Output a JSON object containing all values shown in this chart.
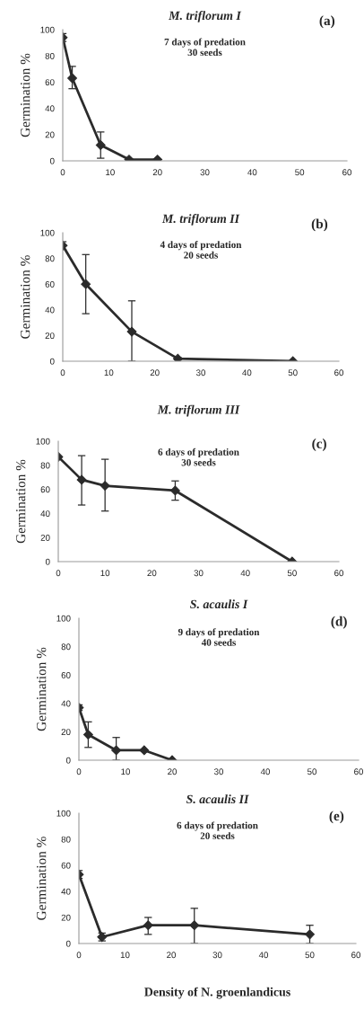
{
  "chart_data": [
    {
      "type": "line",
      "title": "M. triflorum I",
      "ylabel": "Germination %",
      "annotations": [
        "(a)",
        "7 days of predation\n30 seeds"
      ],
      "x": [
        0,
        2,
        8,
        14,
        20
      ],
      "values": [
        94,
        63,
        12,
        1,
        1
      ],
      "errors": [
        3,
        [
          55,
          72
        ],
        [
          2,
          22
        ],
        null,
        null
      ],
      "color": "#2b2b2b",
      "marker": "diamond",
      "xlim": [
        0,
        60
      ],
      "xticks": [
        0,
        10,
        20,
        30,
        40,
        50,
        60
      ],
      "ylim": [
        0,
        100
      ],
      "yticks": [
        0,
        20,
        40,
        60,
        80,
        100
      ],
      "grid": false
    },
    {
      "type": "line",
      "title": "M. triflorum II",
      "ylabel": "Germination %",
      "annotations": [
        "(b)",
        "4 days of predation\n20 seeds"
      ],
      "x": [
        0,
        5,
        15,
        25,
        50
      ],
      "values": [
        90,
        60,
        23,
        2,
        0
      ],
      "errors": [
        3,
        [
          37,
          83
        ],
        [
          0,
          47
        ],
        1,
        null
      ],
      "color": "#2b2b2b",
      "marker": "diamond",
      "xlim": [
        0,
        60
      ],
      "xticks": [
        0,
        10,
        20,
        30,
        40,
        50,
        60
      ],
      "ylim": [
        0,
        100
      ],
      "yticks": [
        0,
        20,
        40,
        60,
        80,
        100
      ],
      "grid": false
    },
    {
      "type": "line",
      "title": "M. triflorum III",
      "ylabel": "Germination %",
      "annotations": [
        "(c)",
        "6 days of predation\n30 seeds"
      ],
      "x": [
        0,
        5,
        10,
        25,
        50
      ],
      "values": [
        87,
        68,
        63,
        59,
        0
      ],
      "errors": [
        null,
        [
          47,
          88
        ],
        [
          42,
          85
        ],
        [
          51,
          67
        ],
        null
      ],
      "color": "#2b2b2b",
      "marker": "diamond",
      "xlim": [
        0,
        60
      ],
      "xticks": [
        0,
        10,
        20,
        30,
        40,
        50,
        60
      ],
      "ylim": [
        0,
        100
      ],
      "yticks": [
        0,
        20,
        40,
        60,
        80,
        100
      ],
      "grid": false
    },
    {
      "type": "line",
      "title": "S. acaulis I",
      "ylabel": "Germination %",
      "annotations": [
        "(d)",
        "9 days of predation\n40 seeds"
      ],
      "x": [
        0,
        2,
        8,
        14,
        20
      ],
      "values": [
        37,
        18,
        7,
        7,
        0
      ],
      "errors": [
        2,
        [
          9,
          27
        ],
        [
          0,
          16
        ],
        null,
        null
      ],
      "color": "#2b2b2b",
      "marker": "diamond",
      "xlim": [
        0,
        60
      ],
      "xticks": [
        0,
        10,
        20,
        30,
        40,
        50,
        60
      ],
      "ylim": [
        0,
        100
      ],
      "yticks": [
        0,
        20,
        40,
        60,
        80,
        100
      ],
      "grid": false
    },
    {
      "type": "line",
      "title": "S. acaulis II",
      "ylabel": "Germination %",
      "xlabel": "Density of N. groenlandicus",
      "annotations": [
        "(e)",
        "6 days of predation\n20 seeds"
      ],
      "x": [
        0,
        5,
        15,
        25,
        50
      ],
      "values": [
        53,
        5,
        14,
        14,
        7
      ],
      "errors": [
        3,
        3,
        [
          7,
          20
        ],
        [
          0,
          27
        ],
        [
          0,
          14
        ]
      ],
      "color": "#2b2b2b",
      "marker": "diamond",
      "xlim": [
        0,
        60
      ],
      "xticks": [
        0,
        10,
        20,
        30,
        40,
        50,
        60
      ],
      "ylim": [
        0,
        100
      ],
      "yticks": [
        0,
        20,
        40,
        60,
        80,
        100
      ],
      "grid": false
    }
  ]
}
